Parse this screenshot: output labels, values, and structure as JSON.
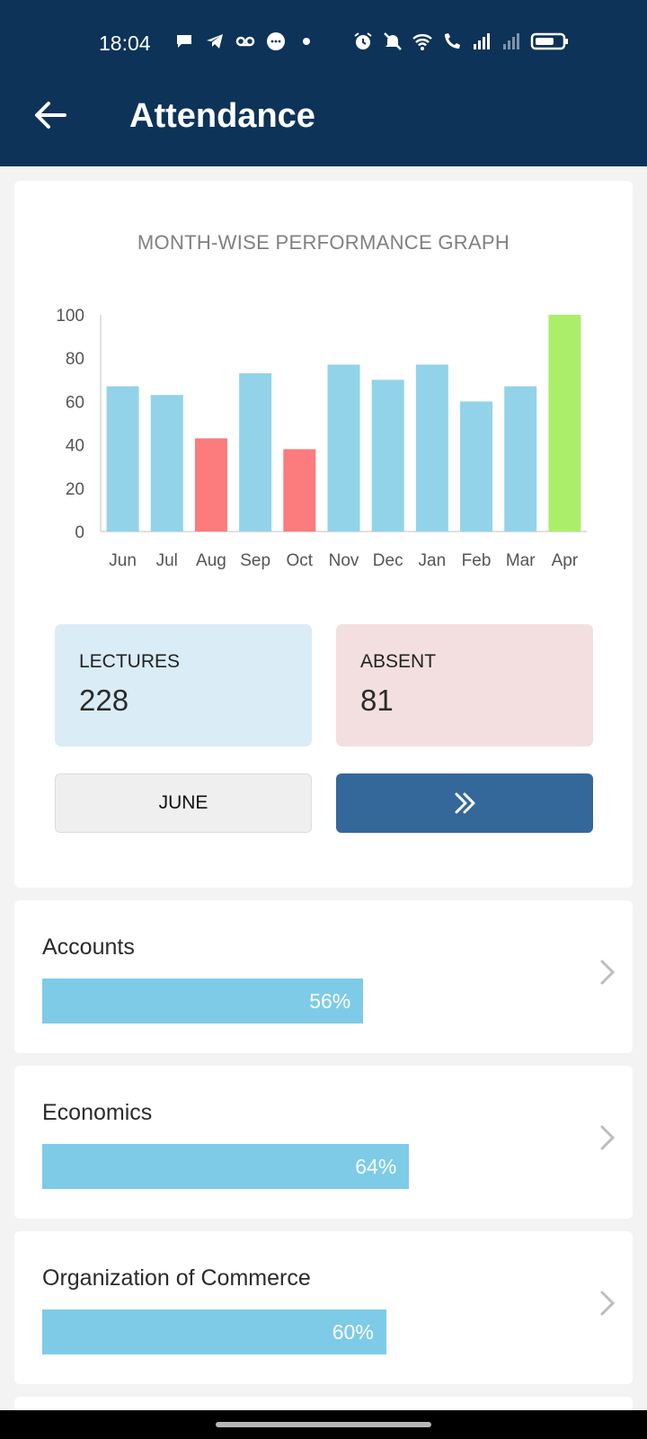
{
  "status_bar": {
    "time": "18:04",
    "left_icons": [
      "chat-bubble-icon",
      "telegram-icon",
      "voicemail-icon",
      "messenger-icon",
      "dot-icon"
    ],
    "right_icons": [
      "alarm-icon",
      "mute-icon",
      "wifi-icon",
      "wifi-call-icon",
      "signal-icon",
      "signal-weak-icon",
      "battery-icon"
    ]
  },
  "app_bar": {
    "title": "Attendance",
    "background": "#0e3358"
  },
  "chart_data": {
    "type": "bar",
    "title": "MONTH-WISE PERFORMANCE GRAPH",
    "categories": [
      "Jun",
      "Jul",
      "Aug",
      "Sep",
      "Oct",
      "Nov",
      "Dec",
      "Jan",
      "Feb",
      "Mar",
      "Apr"
    ],
    "values": [
      67,
      63,
      43,
      73,
      38,
      77,
      70,
      77,
      60,
      67,
      100
    ],
    "colors": [
      "#92d3ea",
      "#92d3ea",
      "#fc7b7d",
      "#92d3ea",
      "#fc7b7d",
      "#92d3ea",
      "#92d3ea",
      "#92d3ea",
      "#92d3ea",
      "#92d3ea",
      "#abee6a"
    ],
    "ylim": [
      0,
      100
    ],
    "yticks": [
      0,
      20,
      40,
      60,
      80,
      100
    ],
    "grid": false,
    "legend": "none"
  },
  "stats": {
    "lectures_label": "LECTURES",
    "lectures_value": "228",
    "absent_label": "ABSENT",
    "absent_value": "81"
  },
  "controls": {
    "month_label": "JUNE",
    "next_icon": "double-chevron-right-icon"
  },
  "subjects": [
    {
      "name": "Accounts",
      "percent": 56,
      "label": "56%"
    },
    {
      "name": "Economics",
      "percent": 64,
      "label": "64%"
    },
    {
      "name": "Organization of Commerce",
      "percent": 60,
      "label": "60%"
    }
  ]
}
